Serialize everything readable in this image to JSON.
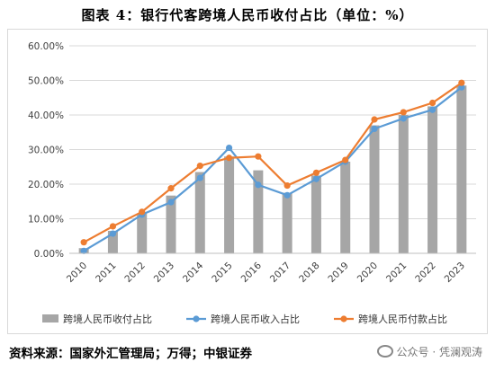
{
  "title": "图表 4：银行代客跨境人民币收付占比（单位：%）",
  "source": "资料来源：国家外汇管理局；万得；中银证券",
  "watermark": "公众号 · 凭澜观涛",
  "colors": {
    "bar": "#a6a6a6",
    "receipt_line": "#5b9bd5",
    "payment_line": "#ed7d31",
    "grid": "#d9d9d9"
  },
  "chart_data": {
    "type": "bar",
    "categories": [
      "2010",
      "2011",
      "2012",
      "2013",
      "2014",
      "2015",
      "2016",
      "2017",
      "2018",
      "2019",
      "2020",
      "2021",
      "2022",
      "2023"
    ],
    "ylim": [
      0,
      60
    ],
    "yticks": [
      "0.00%",
      "10.00%",
      "20.00%",
      "30.00%",
      "40.00%",
      "50.00%",
      "60.00%"
    ],
    "grid": true,
    "legend_position": "bottom",
    "series": [
      {
        "name": "跨境人民币收付占比",
        "type": "bar",
        "values": [
          1.5,
          6.5,
          11.5,
          16.7,
          23.5,
          28.0,
          24.0,
          17.5,
          22.5,
          26.5,
          37.0,
          40.0,
          42.5,
          48.5
        ]
      },
      {
        "name": "跨境人民币收入占比",
        "type": "line",
        "values": [
          0.7,
          5.7,
          11.2,
          14.8,
          21.8,
          30.5,
          19.8,
          16.8,
          21.5,
          26.5,
          36.0,
          39.0,
          41.5,
          48.0
        ]
      },
      {
        "name": "跨境人民币付款占比",
        "type": "line",
        "values": [
          3.2,
          7.8,
          12.0,
          18.8,
          25.3,
          27.6,
          28.0,
          19.6,
          23.3,
          27.0,
          38.7,
          40.8,
          43.5,
          49.3
        ]
      }
    ]
  }
}
